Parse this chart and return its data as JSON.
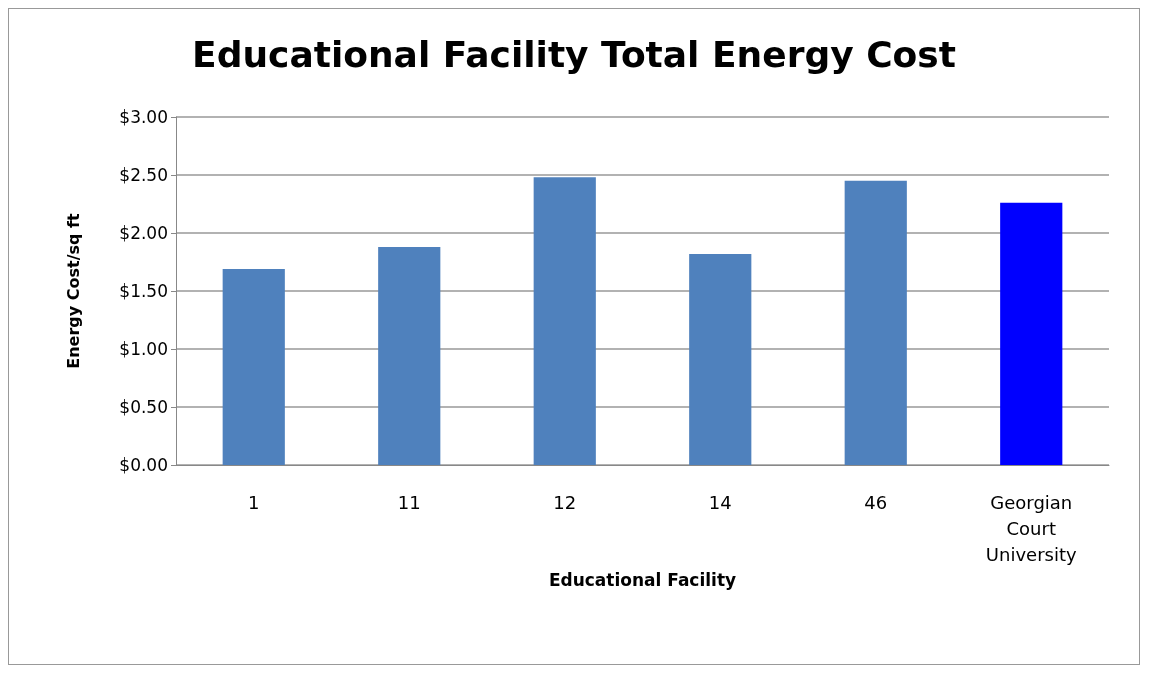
{
  "chart_data": {
    "type": "bar",
    "title": "Educational Facility Total Energy Cost",
    "xlabel": "Educational Facility",
    "ylabel": "Energy Cost/sq ft",
    "categories": [
      "1",
      "11",
      "12",
      "14",
      "46",
      "Georgian Court University"
    ],
    "values": [
      1.69,
      1.88,
      2.48,
      1.82,
      2.45,
      2.26
    ],
    "colors": [
      "#4f81bd",
      "#4f81bd",
      "#4f81bd",
      "#4f81bd",
      "#4f81bd",
      "#0000ff"
    ],
    "ylim": [
      0,
      3
    ],
    "yticks": [
      {
        "value": 0,
        "label": "$0.00"
      },
      {
        "value": 0.5,
        "label": "$0.50"
      },
      {
        "value": 1,
        "label": "$1.00"
      },
      {
        "value": 1.5,
        "label": "$1.50"
      },
      {
        "value": 2,
        "label": "$2.00"
      },
      {
        "value": 2.5,
        "label": "$2.50"
      },
      {
        "value": 3,
        "label": "$3.00"
      }
    ],
    "grid": "y"
  }
}
